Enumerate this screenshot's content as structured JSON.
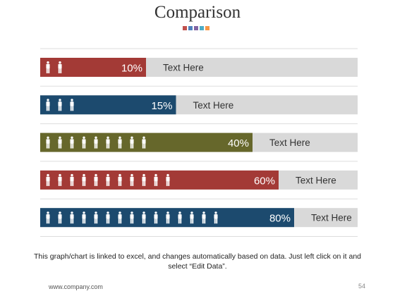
{
  "title": "Comparison",
  "title_dots": [
    "#c0504d",
    "#4f81bd",
    "#8064a2",
    "#4bacc6",
    "#f79646"
  ],
  "chart_data": {
    "type": "bar",
    "orientation": "horizontal",
    "icon": "person-icon",
    "categories": [
      "Text Here",
      "Text Here",
      "Text Here",
      "Text Here",
      "Text Here"
    ],
    "values": [
      10,
      15,
      40,
      60,
      80
    ],
    "value_labels": [
      "10%",
      "15%",
      "40%",
      "60%",
      "80%"
    ],
    "icon_counts": [
      2,
      3,
      9,
      11,
      15
    ],
    "colors": [
      "#a33a36",
      "#1c4a6e",
      "#66672b",
      "#a33a36",
      "#1c4a6e"
    ],
    "track_color": "#d9d9d9",
    "xlim": [
      0,
      100
    ]
  },
  "footnote": "This graph/chart is linked to excel, and changes automatically based on data. Just left click on it and select “Edit Data”.",
  "footer": {
    "url": "www.company.com",
    "page": "54"
  }
}
